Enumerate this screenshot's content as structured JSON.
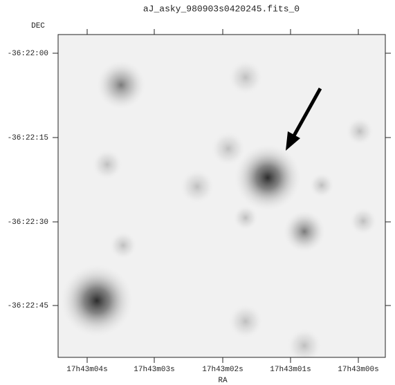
{
  "title": "aJ_asky_980903s0420245.fits_0",
  "y_axis": {
    "label": "DEC",
    "ticks": [
      "-36:22:00",
      "-36:22:15",
      "-36:22:30",
      "-36:22:45"
    ]
  },
  "x_axis": {
    "label": "RA",
    "ticks": [
      "17h43m04s",
      "17h43m03s",
      "17h43m02s",
      "17h43m01s",
      "17h43m00s"
    ]
  }
}
